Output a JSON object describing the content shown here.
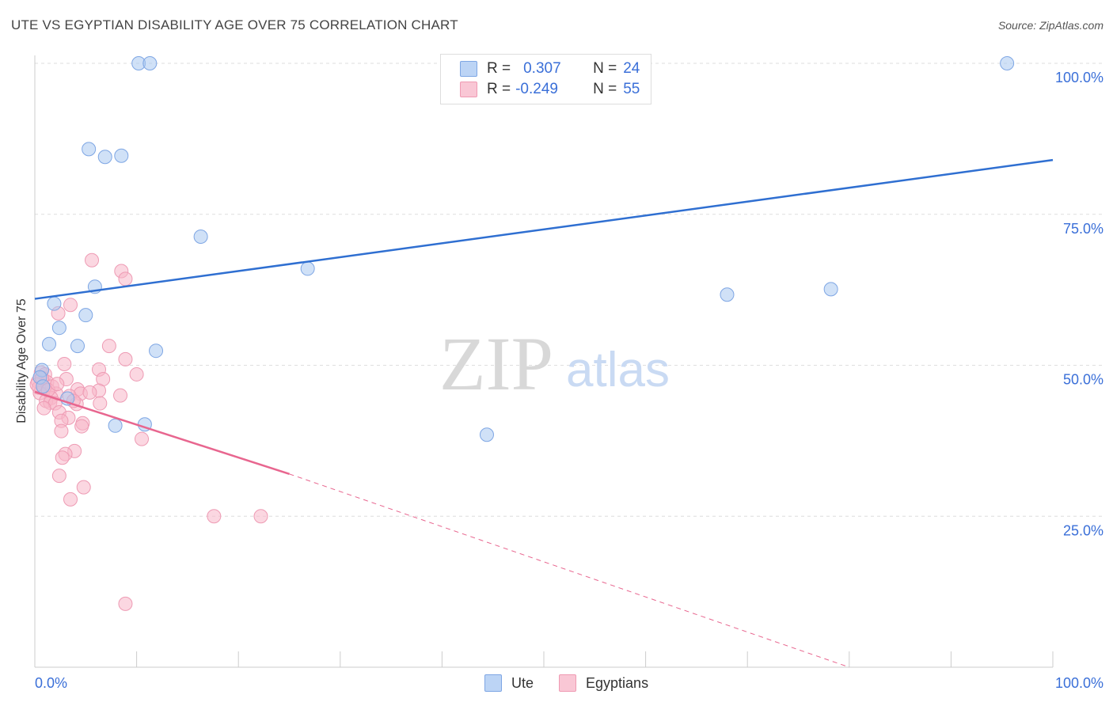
{
  "title": "UTE VS EGYPTIAN DISABILITY AGE OVER 75 CORRELATION CHART",
  "source": "Source: ZipAtlas.com",
  "watermark": {
    "zip": "ZIP",
    "atlas": "atlas"
  },
  "legend": {
    "rows": [
      {
        "r_label": "R =",
        "r_value": "0.307",
        "n_label": "N =",
        "n_value": "24"
      },
      {
        "r_label": "R =",
        "r_value": "-0.249",
        "n_label": "N =",
        "n_value": "55"
      }
    ]
  },
  "bottom_legend": [
    "Ute",
    "Egyptians"
  ],
  "chart_data": {
    "type": "scatter",
    "title": "UTE VS EGYPTIAN DISABILITY AGE OVER 75 CORRELATION CHART",
    "xlabel": "",
    "ylabel": "Disability Age Over 75",
    "xlim": [
      0,
      100
    ],
    "ylim": [
      0,
      103
    ],
    "x_tick_labels": [
      "0.0%",
      "100.0%"
    ],
    "y_tick_labels": [
      "25.0%",
      "50.0%",
      "75.0%",
      "100.0%"
    ],
    "y_ticks": [
      25,
      50,
      75,
      100
    ],
    "colors": {
      "ute": "#a9c8f0",
      "ute_line": "#2f6fd1",
      "egy": "#f7b6c8",
      "egy_line": "#e8668f",
      "axis_text": "#3a6fd8"
    },
    "series": [
      {
        "name": "Ute",
        "points": [
          [
            10.2,
            100
          ],
          [
            11.3,
            100
          ],
          [
            95.5,
            100
          ],
          [
            5.3,
            85.8
          ],
          [
            6.9,
            84.5
          ],
          [
            8.5,
            84.7
          ],
          [
            16.3,
            71.3
          ],
          [
            26.8,
            66.0
          ],
          [
            5.9,
            63.0
          ],
          [
            68.0,
            61.7
          ],
          [
            78.2,
            62.6
          ],
          [
            1.9,
            60.2
          ],
          [
            5.0,
            58.3
          ],
          [
            2.4,
            56.2
          ],
          [
            1.4,
            53.5
          ],
          [
            4.2,
            53.2
          ],
          [
            11.9,
            52.4
          ],
          [
            0.7,
            49.2
          ],
          [
            0.5,
            48.0
          ],
          [
            0.8,
            46.5
          ],
          [
            3.2,
            44.5
          ],
          [
            7.9,
            40.0
          ],
          [
            10.8,
            40.2
          ],
          [
            44.4,
            38.5
          ]
        ],
        "trend": {
          "x": [
            0,
            100
          ],
          "y": [
            61,
            84
          ]
        }
      },
      {
        "name": "Egyptians",
        "points": [
          [
            5.6,
            67.4
          ],
          [
            8.5,
            65.6
          ],
          [
            8.9,
            64.3
          ],
          [
            3.5,
            60.0
          ],
          [
            2.3,
            58.6
          ],
          [
            7.3,
            53.2
          ],
          [
            8.9,
            51.0
          ],
          [
            2.9,
            50.2
          ],
          [
            6.3,
            49.3
          ],
          [
            0.6,
            48.8
          ],
          [
            1.0,
            48.5
          ],
          [
            10.0,
            48.5
          ],
          [
            3.1,
            47.7
          ],
          [
            6.7,
            47.7
          ],
          [
            0.3,
            47.3
          ],
          [
            1.2,
            47.2
          ],
          [
            1.7,
            46.5
          ],
          [
            0.4,
            46.3
          ],
          [
            0.9,
            46.1
          ],
          [
            4.2,
            46.0
          ],
          [
            6.3,
            45.8
          ],
          [
            0.5,
            45.4
          ],
          [
            2.1,
            45.3
          ],
          [
            4.5,
            45.3
          ],
          [
            5.4,
            45.5
          ],
          [
            8.4,
            45.0
          ],
          [
            3.4,
            44.9
          ],
          [
            1.6,
            44.6
          ],
          [
            1.1,
            44.1
          ],
          [
            1.5,
            43.8
          ],
          [
            2.0,
            43.7
          ],
          [
            4.1,
            43.6
          ],
          [
            6.4,
            43.7
          ],
          [
            0.9,
            42.9
          ],
          [
            2.4,
            42.2
          ],
          [
            3.3,
            41.3
          ],
          [
            2.6,
            40.8
          ],
          [
            4.7,
            40.4
          ],
          [
            4.6,
            39.9
          ],
          [
            2.6,
            39.1
          ],
          [
            10.5,
            37.8
          ],
          [
            3.9,
            35.8
          ],
          [
            3.0,
            35.3
          ],
          [
            2.7,
            34.7
          ],
          [
            2.4,
            31.7
          ],
          [
            4.8,
            29.8
          ],
          [
            3.5,
            27.8
          ],
          [
            17.6,
            25.0
          ],
          [
            22.2,
            25.0
          ],
          [
            8.9,
            10.5
          ],
          [
            0.2,
            46.8
          ],
          [
            1.3,
            45.9
          ],
          [
            2.2,
            46.9
          ],
          [
            3.8,
            44.1
          ],
          [
            0.7,
            47.9
          ]
        ],
        "trend": {
          "x": [
            0,
            25
          ],
          "y": [
            45.6,
            32.0
          ]
        },
        "trend_dashed": {
          "x": [
            25,
            80
          ],
          "y": [
            32.0,
            0
          ]
        }
      }
    ]
  }
}
